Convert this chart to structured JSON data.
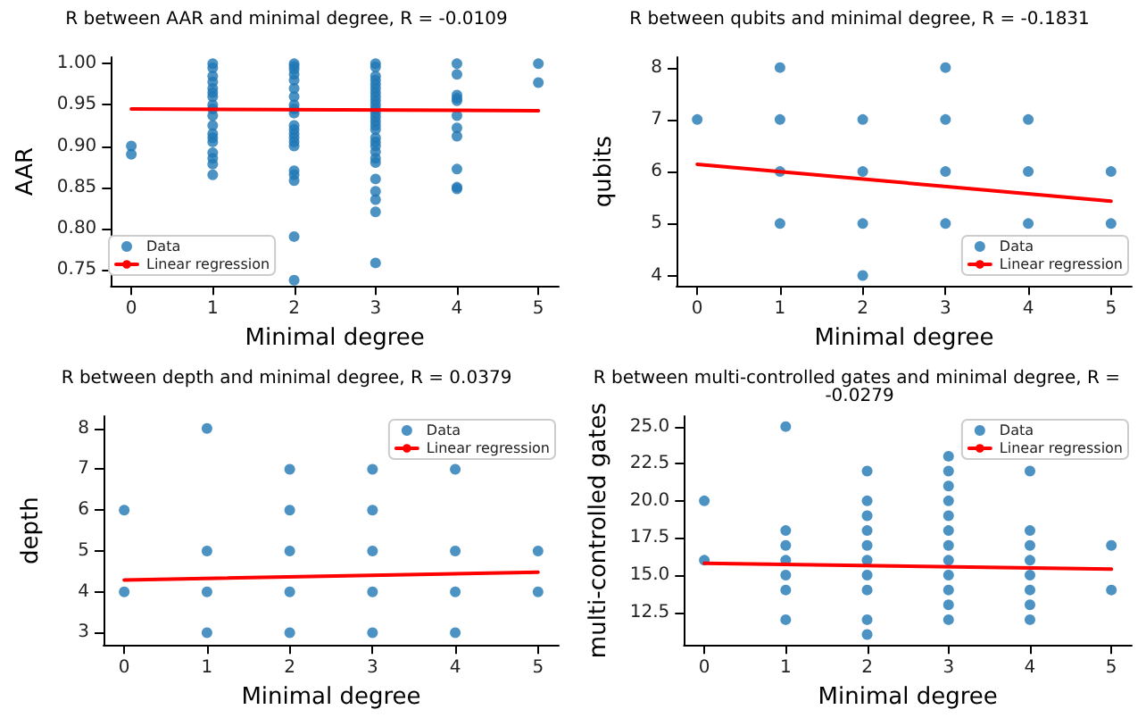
{
  "chart_data": [
    {
      "type": "scatter",
      "title": "R between AAR and minimal degree, R = -0.0109",
      "xlabel": "Minimal degree",
      "ylabel": "AAR",
      "xlim": [
        -0.25,
        5.25
      ],
      "xticks": [
        0,
        1,
        2,
        3,
        4,
        5
      ],
      "ylim": [
        0.73,
        1.008
      ],
      "yticks": [
        {
          "value": 0.75,
          "label": "0.75"
        },
        {
          "value": 0.8,
          "label": "0.80"
        },
        {
          "value": 0.85,
          "label": "0.85"
        },
        {
          "value": 0.9,
          "label": "0.90"
        },
        {
          "value": 0.95,
          "label": "0.95"
        },
        {
          "value": 1.0,
          "label": "1.00"
        }
      ],
      "legend": "bottom left",
      "series": [
        {
          "name": "Data",
          "marker": "circle",
          "color": "#1f77b4",
          "x": [
            0,
            0,
            1,
            1,
            1,
            1,
            1,
            1,
            1,
            1,
            1,
            1,
            1,
            1,
            1,
            1,
            1,
            1,
            1,
            1,
            2,
            2,
            2,
            2,
            2,
            2,
            2,
            2,
            2,
            2,
            2,
            2,
            2,
            2,
            2,
            2,
            2,
            2,
            2,
            2,
            2,
            3,
            3,
            3,
            3,
            3,
            3,
            3,
            3,
            3,
            3,
            3,
            3,
            3,
            3,
            3,
            3,
            3,
            3,
            3,
            3,
            3,
            3,
            3,
            3,
            3,
            3,
            3,
            4,
            4,
            4,
            4,
            4,
            4,
            4,
            4,
            4,
            4,
            4,
            5,
            5
          ],
          "values": [
            0.9,
            0.89,
            1.0,
            0.995,
            0.985,
            0.978,
            0.97,
            0.965,
            0.96,
            0.95,
            0.945,
            0.937,
            0.925,
            0.915,
            0.91,
            0.905,
            0.892,
            0.885,
            0.878,
            0.865,
            1.0,
            0.997,
            0.993,
            0.987,
            0.98,
            0.97,
            0.96,
            0.95,
            0.945,
            0.94,
            0.925,
            0.92,
            0.915,
            0.91,
            0.905,
            0.9,
            0.87,
            0.865,
            0.858,
            0.79,
            0.737,
            1.0,
            0.996,
            0.985,
            0.98,
            0.975,
            0.97,
            0.965,
            0.96,
            0.955,
            0.95,
            0.945,
            0.94,
            0.935,
            0.93,
            0.925,
            0.92,
            0.91,
            0.905,
            0.9,
            0.893,
            0.885,
            0.88,
            0.86,
            0.845,
            0.835,
            0.82,
            0.758,
            1.0,
            0.987,
            0.962,
            0.958,
            0.955,
            0.937,
            0.922,
            0.912,
            0.872,
            0.85,
            0.848,
            1.0,
            0.977
          ]
        },
        {
          "name": "Linear regression",
          "type": "line",
          "line_style": "solid",
          "color": "#ff0000",
          "x": [
            0,
            5
          ],
          "values": [
            0.945,
            0.943
          ]
        }
      ]
    },
    {
      "type": "scatter",
      "title": "R between qubits and minimal degree, R = -0.1831",
      "xlabel": "Minimal degree",
      "ylabel": "qubits",
      "xlim": [
        -0.25,
        5.25
      ],
      "xticks": [
        0,
        1,
        2,
        3,
        4,
        5
      ],
      "ylim": [
        3.8,
        8.2
      ],
      "yticks": [
        4,
        5,
        6,
        7,
        8
      ],
      "legend": "bottom right",
      "series": [
        {
          "name": "Data",
          "marker": "circle",
          "color": "#1f77b4",
          "x": [
            0,
            1,
            1,
            1,
            1,
            2,
            2,
            2,
            2,
            3,
            3,
            3,
            3,
            4,
            4,
            4,
            5,
            5
          ],
          "values": [
            7,
            8,
            7,
            6,
            5,
            7,
            6,
            5,
            4,
            8,
            7,
            6,
            5,
            7,
            6,
            5,
            6,
            5
          ]
        },
        {
          "name": "Linear regression",
          "type": "line",
          "line_style": "solid",
          "color": "#ff0000",
          "x": [
            0,
            5
          ],
          "values": [
            6.14,
            5.43
          ]
        }
      ]
    },
    {
      "type": "scatter",
      "title": "R between depth and minimal degree, R = 0.0379",
      "xlabel": "Minimal degree",
      "ylabel": "depth",
      "xlim": [
        -0.25,
        5.25
      ],
      "xticks": [
        0,
        1,
        2,
        3,
        4,
        5
      ],
      "ylim": [
        2.7,
        8.3
      ],
      "yticks": [
        3,
        4,
        5,
        6,
        7,
        8
      ],
      "legend": "top right",
      "series": [
        {
          "name": "Data",
          "marker": "circle",
          "color": "#1f77b4",
          "x": [
            0,
            0,
            1,
            1,
            1,
            1,
            2,
            2,
            2,
            2,
            2,
            3,
            3,
            3,
            3,
            3,
            4,
            4,
            4,
            4,
            5,
            5
          ],
          "values": [
            6,
            4,
            8,
            5,
            4,
            3,
            7,
            6,
            5,
            4,
            3,
            7,
            6,
            5,
            4,
            3,
            7,
            5,
            4,
            3,
            5,
            4
          ]
        },
        {
          "name": "Linear regression",
          "type": "line",
          "line_style": "solid",
          "color": "#ff0000",
          "x": [
            0,
            5
          ],
          "values": [
            4.29,
            4.48
          ]
        }
      ]
    },
    {
      "type": "scatter",
      "title": "R between multi-controlled gates and minimal degree, R = -0.0279",
      "xlabel": "Minimal degree",
      "ylabel": "multi-controlled gates",
      "xlim": [
        -0.25,
        5.25
      ],
      "xticks": [
        0,
        1,
        2,
        3,
        4,
        5
      ],
      "ylim": [
        10.3,
        25.7
      ],
      "yticks": [
        {
          "value": 12.5,
          "label": "12.5"
        },
        {
          "value": 15,
          "label": "15.0"
        },
        {
          "value": 17.5,
          "label": "17.5"
        },
        {
          "value": 20,
          "label": "20.0"
        },
        {
          "value": 22.5,
          "label": "22.5"
        },
        {
          "value": 25,
          "label": "25.0"
        }
      ],
      "legend": "top right",
      "series": [
        {
          "name": "Data",
          "marker": "circle",
          "color": "#1f77b4",
          "x": [
            0,
            0,
            1,
            1,
            1,
            1,
            1,
            1,
            1,
            2,
            2,
            2,
            2,
            2,
            2,
            2,
            2,
            2,
            2,
            3,
            3,
            3,
            3,
            3,
            3,
            3,
            3,
            3,
            3,
            3,
            3,
            4,
            4,
            4,
            4,
            4,
            4,
            4,
            4,
            5,
            5
          ],
          "values": [
            20,
            16,
            25,
            18,
            17,
            16,
            15,
            14,
            12,
            22,
            20,
            19,
            18,
            17,
            16,
            15,
            14,
            12,
            11,
            23,
            22,
            21,
            20,
            19,
            18,
            17,
            16,
            15,
            14,
            13,
            12,
            22,
            18,
            17,
            16,
            15,
            14,
            13,
            12,
            17,
            14
          ]
        },
        {
          "name": "Linear regression",
          "type": "line",
          "line_style": "solid",
          "color": "#ff0000",
          "x": [
            0,
            5
          ],
          "values": [
            15.8,
            15.4
          ]
        }
      ]
    }
  ]
}
